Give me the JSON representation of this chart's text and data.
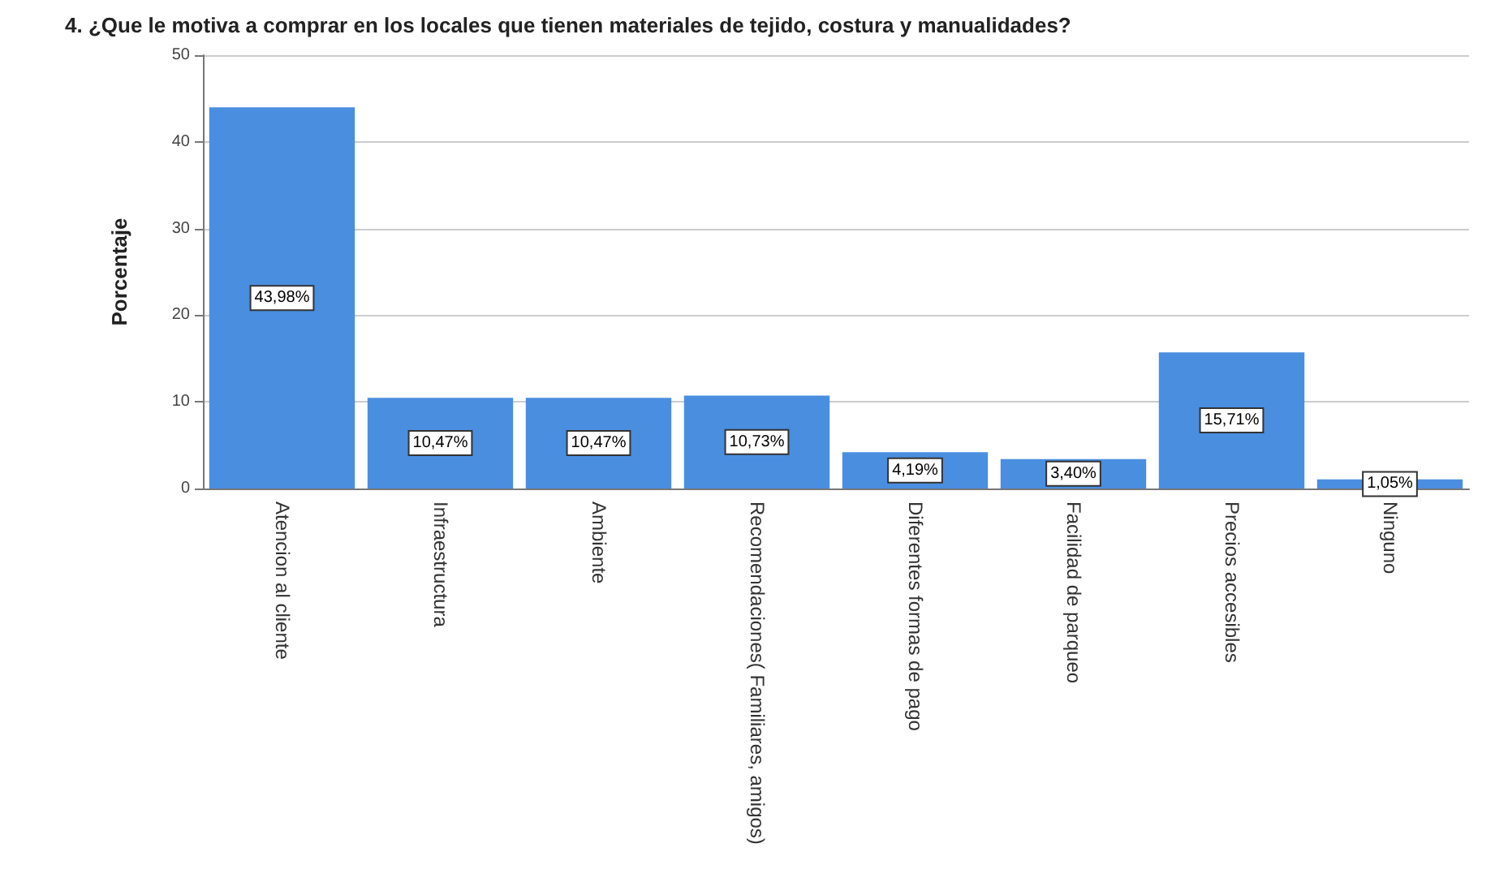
{
  "chart_data": {
    "type": "bar",
    "title": "4. ¿Que le motiva a comprar en los locales que tienen materiales de tejido, costura y manualidades?",
    "ylabel": "Porcentaje",
    "categories": [
      "Atencion al cliente",
      "Infraestructura",
      "Ambiente",
      "Recomendaciones( Familiares, amigos)",
      "Diferentes formas de pago",
      "Facilidad de parqueo",
      "Precios accesibles",
      "Ninguno"
    ],
    "values": [
      43.98,
      10.47,
      10.47,
      10.73,
      4.19,
      3.4,
      15.71,
      1.05
    ],
    "value_labels": [
      "43,98%",
      "10,47%",
      "10,47%",
      "10,73%",
      "4,19%",
      "3,40%",
      "15,71%",
      "1,05%"
    ],
    "color": "#4a8ee0",
    "ylim": [
      0,
      50
    ],
    "yticks": [
      0,
      10,
      20,
      30,
      40,
      50
    ],
    "grid": "y"
  }
}
